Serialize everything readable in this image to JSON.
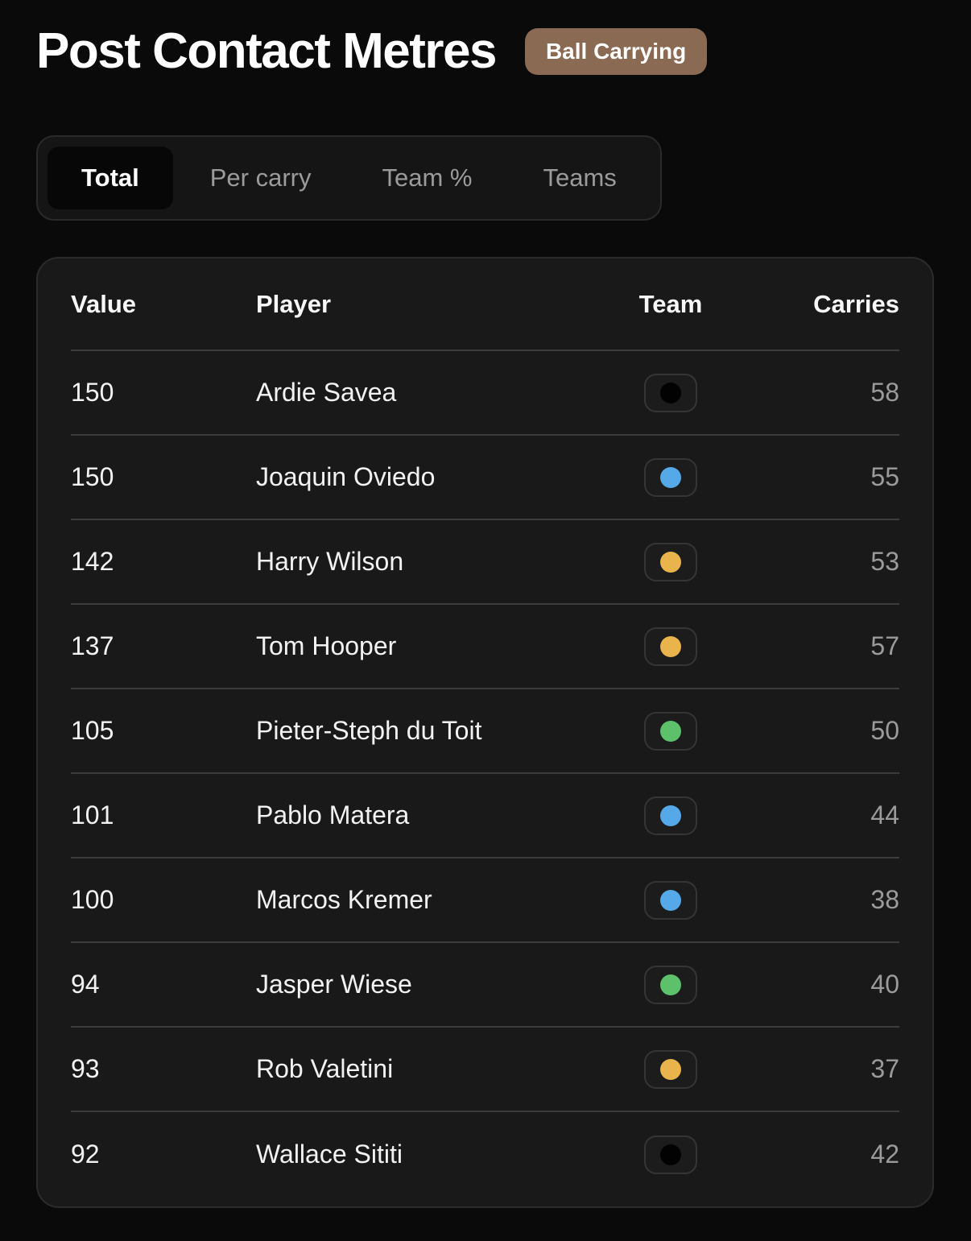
{
  "colors": {
    "page_bg": "#0a0a0a",
    "card_bg": "#191919",
    "card_border": "#2b2b2b",
    "tabbar_bg": "#151515",
    "active_tab_bg": "#070707",
    "divider": "#3c3c3c",
    "muted_text": "#9b9b9b",
    "badge_bg": "#8a6a52",
    "team_black": "#020202",
    "team_blue": "#55a9e8",
    "team_yellow": "#e9b44c",
    "team_green": "#5dc16b"
  },
  "header": {
    "title": "Post Contact Metres",
    "badge_label": "Ball Carrying"
  },
  "tabs": [
    {
      "label": "Total",
      "active": true
    },
    {
      "label": "Per carry",
      "active": false
    },
    {
      "label": "Team %",
      "active": false
    },
    {
      "label": "Teams",
      "active": false
    }
  ],
  "table": {
    "columns": [
      "Value",
      "Player",
      "Team",
      "Carries"
    ],
    "rows": [
      {
        "value": "150",
        "player": "Ardie Savea",
        "team_dot": "black",
        "team_color": "#020202",
        "carries": "58"
      },
      {
        "value": "150",
        "player": "Joaquin Oviedo",
        "team_dot": "blue",
        "team_color": "#55a9e8",
        "carries": "55"
      },
      {
        "value": "142",
        "player": "Harry Wilson",
        "team_dot": "yellow",
        "team_color": "#e9b44c",
        "carries": "53"
      },
      {
        "value": "137",
        "player": "Tom Hooper",
        "team_dot": "yellow",
        "team_color": "#e9b44c",
        "carries": "57"
      },
      {
        "value": "105",
        "player": "Pieter-Steph du Toit",
        "team_dot": "green",
        "team_color": "#5dc16b",
        "carries": "50"
      },
      {
        "value": "101",
        "player": "Pablo Matera",
        "team_dot": "blue",
        "team_color": "#55a9e8",
        "carries": "44"
      },
      {
        "value": "100",
        "player": "Marcos Kremer",
        "team_dot": "blue",
        "team_color": "#55a9e8",
        "carries": "38"
      },
      {
        "value": "94",
        "player": "Jasper Wiese",
        "team_dot": "green",
        "team_color": "#5dc16b",
        "carries": "40"
      },
      {
        "value": "93",
        "player": "Rob Valetini",
        "team_dot": "yellow",
        "team_color": "#e9b44c",
        "carries": "37"
      },
      {
        "value": "92",
        "player": "Wallace Sititi",
        "team_dot": "black",
        "team_color": "#020202",
        "carries": "42"
      }
    ]
  }
}
